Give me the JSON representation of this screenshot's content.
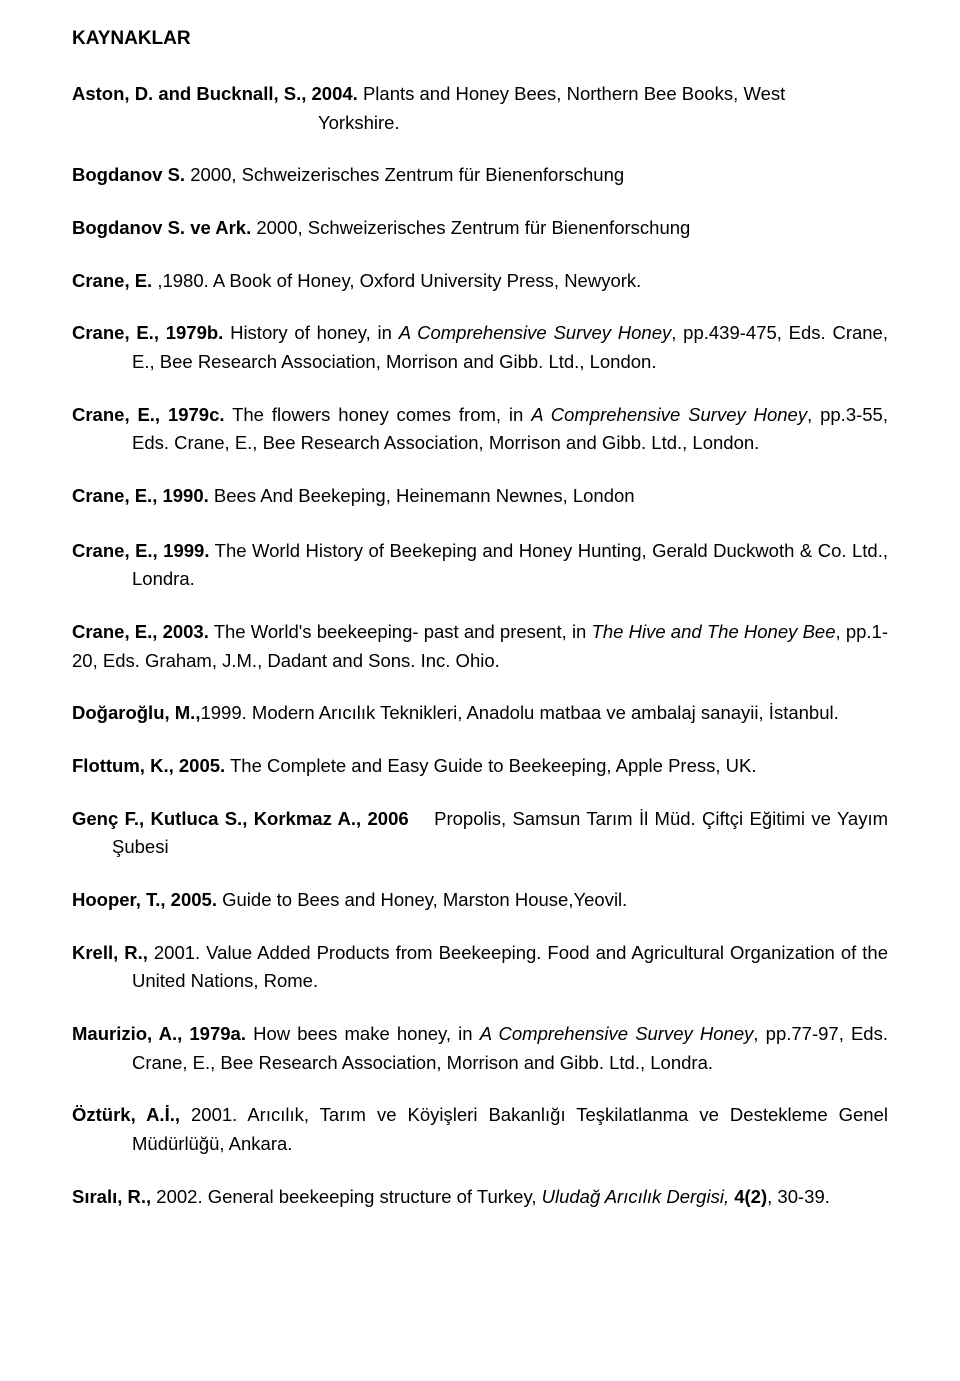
{
  "heading": "KAYNAKLAR",
  "refs": [
    {
      "html": "<span class=\"b\">Aston, D. and Bucknall, S., 2004.</span> Plants and Honey Bees, Northern Bee Books, West"
    },
    {
      "html": "Yorkshire.",
      "class": "yorkshire"
    },
    {
      "html": "<span class=\"b\">Bogdanov S.</span> 2000, Schweizerisches Zentrum für Bienenforschung"
    },
    {
      "html": "<span class=\"b\">Bogdanov S. ve Ark.</span> 2000, Schweizerisches Zentrum für Bienenforschung"
    },
    {
      "html": "<span class=\"b\">Crane, E.</span> ,1980. A Book of Honey, Oxford University Press, Newyork."
    },
    {
      "html": "<span class=\"b\">Crane, E., 1979b.</span> History of honey, in <span class=\"i\">A Comprehensive Survey Honey</span>, pp.439-475, Eds. Crane, E., Bee Research Association, Morrison and Gibb. Ltd.,  London."
    },
    {
      "html": "<span class=\"b\">Crane, E., 1979c.</span> The flowers honey comes from, in <span class=\"i\">A Comprehensive Survey Honey</span>, pp.3-55, Eds. Crane, E., Bee Research Association, Morrison and Gibb. Ltd., London."
    },
    {
      "html": "<span class=\"b\">Crane, E., 1990.</span> Bees And Beekeping, Heinemann Newnes, London",
      "class": "big-gap"
    },
    {
      "html": "<span class=\"b\">Crane, E., 1999.</span> The World History of Beekeping and Honey Hunting, Gerald Duckwoth &amp; Co. Ltd., Londra."
    },
    {
      "html": "<span class=\"b\">Crane, E., 2003.</span> The World's beekeeping- past and present, in <span class=\"i\">The Hive and The Honey Bee</span>, pp.1-20, Eds. Graham, J.M., Dadant and Sons. Inc. Ohio.",
      "noindent": true
    },
    {
      "html": "<span class=\"b\">Doğaroğlu, M.,</span>1999. Modern Arıcılık Teknikleri, Anadolu matbaa ve ambalaj sanayii, İstanbul."
    },
    {
      "html": "<span class=\"b\">Flottum, K., 2005.</span> The Complete and Easy Guide to Beekeeping, Apple Press, UK."
    },
    {
      "html": "<span class=\"b\">Genç F., Kutluca S., Korkmaz A., 2006</span>&nbsp;&nbsp;&nbsp;&nbsp;Propolis, Samsun Tarım İl Müd. Çiftçi Eğitimi ve Yayım Şubesi",
      "indent40": true
    },
    {
      "html": "<span class=\"b\">Hooper, T., 2005.</span> Guide to Bees and Honey, Marston House,Yeovil."
    },
    {
      "html": "<span class=\"b\">Krell, R.,</span> 2001. Value Added Products from Beekeeping. Food and Agricultural Organization of the United Nations, Rome."
    },
    {
      "html": "<span class=\"b\">Maurizio, A., 1979a.</span> How bees make honey, in <span class=\"i\">A Comprehensive Survey Honey</span>, pp.77-97, Eds. Crane, E., Bee Research Association, Morrison and Gibb. Ltd.,  Londra."
    },
    {
      "html": "<span class=\"b\">Öztürk, A.İ.,</span> 2001. Arıcılık, Tarım ve Köyişleri Bakanlığı Teşkilatlanma ve Destekleme Genel Müdürlüğü, Ankara."
    },
    {
      "html": "<span class=\"b\">Sıralı, R.,</span> 2002. General beekeeping structure of Turkey, <span class=\"i\">Uludağ Arıcılık Dergisi,</span> <span class=\"b\">4(2)</span>, 30-39."
    }
  ]
}
